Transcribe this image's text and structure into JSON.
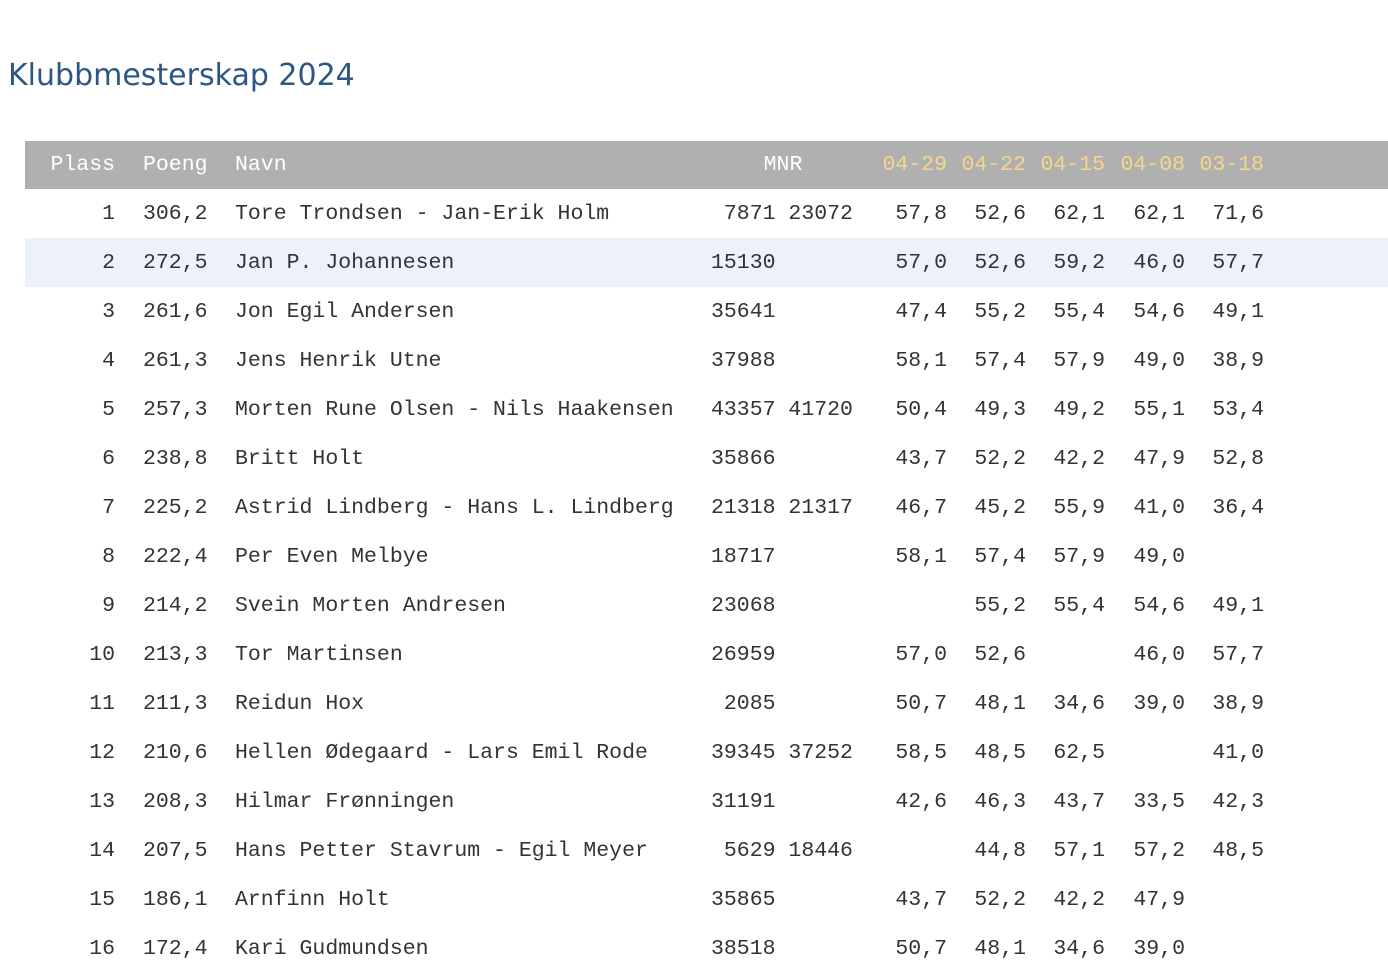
{
  "title": "Klubbmesterskap 2024",
  "headers": {
    "plass": "Plass",
    "poeng": "Poeng",
    "navn": "Navn",
    "mnr": "MNR",
    "dates": [
      "04-29",
      "04-22",
      "04-15",
      "04-08",
      "03-18"
    ]
  },
  "colors": {
    "title": "#2c5784",
    "header_bg": "#b0b0b0",
    "date_header": "#f6d68c",
    "highlight_row": "#edf1fc"
  },
  "rows": [
    {
      "plass": "1",
      "poeng": "306,2",
      "navn": "Tore Trondsen - Jan-Erik Holm",
      "mnr": " 7871 23072",
      "scores": [
        "57,8",
        "52,6",
        "62,1",
        "62,1",
        "71,6"
      ]
    },
    {
      "plass": "2",
      "poeng": "272,5",
      "navn": "Jan P. Johannesen",
      "mnr": "15130",
      "scores": [
        "57,0",
        "52,6",
        "59,2",
        "46,0",
        "57,7"
      ],
      "highlighted": true
    },
    {
      "plass": "3",
      "poeng": "261,6",
      "navn": "Jon Egil Andersen",
      "mnr": "35641",
      "scores": [
        "47,4",
        "55,2",
        "55,4",
        "54,6",
        "49,1"
      ]
    },
    {
      "plass": "4",
      "poeng": "261,3",
      "navn": "Jens Henrik Utne",
      "mnr": "37988",
      "scores": [
        "58,1",
        "57,4",
        "57,9",
        "49,0",
        "38,9"
      ]
    },
    {
      "plass": "5",
      "poeng": "257,3",
      "navn": "Morten Rune Olsen - Nils Haakensen",
      "mnr": "43357 41720",
      "scores": [
        "50,4",
        "49,3",
        "49,2",
        "55,1",
        "53,4"
      ]
    },
    {
      "plass": "6",
      "poeng": "238,8",
      "navn": "Britt Holt",
      "mnr": "35866",
      "scores": [
        "43,7",
        "52,2",
        "42,2",
        "47,9",
        "52,8"
      ]
    },
    {
      "plass": "7",
      "poeng": "225,2",
      "navn": "Astrid Lindberg - Hans L. Lindberg",
      "mnr": "21318 21317",
      "scores": [
        "46,7",
        "45,2",
        "55,9",
        "41,0",
        "36,4"
      ]
    },
    {
      "plass": "8",
      "poeng": "222,4",
      "navn": "Per Even Melbye",
      "mnr": "18717",
      "scores": [
        "58,1",
        "57,4",
        "57,9",
        "49,0",
        ""
      ]
    },
    {
      "plass": "9",
      "poeng": "214,2",
      "navn": "Svein Morten Andresen",
      "mnr": "23068",
      "scores": [
        "",
        "55,2",
        "55,4",
        "54,6",
        "49,1"
      ]
    },
    {
      "plass": "10",
      "poeng": "213,3",
      "navn": "Tor Martinsen",
      "mnr": "26959",
      "scores": [
        "57,0",
        "52,6",
        "",
        "46,0",
        "57,7"
      ]
    },
    {
      "plass": "11",
      "poeng": "211,3",
      "navn": "Reidun Hox",
      "mnr": " 2085",
      "scores": [
        "50,7",
        "48,1",
        "34,6",
        "39,0",
        "38,9"
      ]
    },
    {
      "plass": "12",
      "poeng": "210,6",
      "navn": "Hellen Ødegaard - Lars Emil Rode",
      "mnr": "39345 37252",
      "scores": [
        "58,5",
        "48,5",
        "62,5",
        "",
        "41,0"
      ]
    },
    {
      "plass": "13",
      "poeng": "208,3",
      "navn": "Hilmar Frønningen",
      "mnr": "31191",
      "scores": [
        "42,6",
        "46,3",
        "43,7",
        "33,5",
        "42,3"
      ]
    },
    {
      "plass": "14",
      "poeng": "207,5",
      "navn": "Hans Petter Stavrum - Egil Meyer",
      "mnr": " 5629 18446",
      "scores": [
        "",
        "44,8",
        "57,1",
        "57,2",
        "48,5"
      ]
    },
    {
      "plass": "15",
      "poeng": "186,1",
      "navn": "Arnfinn Holt",
      "mnr": "35865",
      "scores": [
        "43,7",
        "52,2",
        "42,2",
        "47,9",
        ""
      ]
    },
    {
      "plass": "16",
      "poeng": "172,4",
      "navn": "Kari Gudmundsen",
      "mnr": "38518",
      "scores": [
        "50,7",
        "48,1",
        "34,6",
        "39,0",
        ""
      ]
    }
  ]
}
